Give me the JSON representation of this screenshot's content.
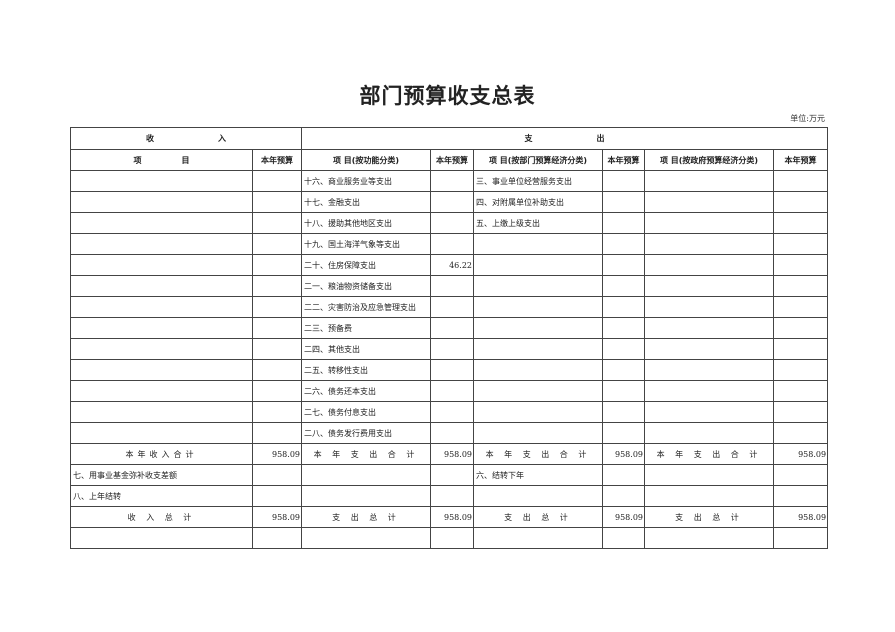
{
  "title": "部门预算收支总表",
  "unit": "单位:万元",
  "header": {
    "income": "收　　　　　　　　入",
    "expense": "支　　　　　　　　出",
    "cols": [
      "项　　　　　目",
      "本年预算",
      "项 目(按功能分类)",
      "本年预算",
      "项 目(按部门预算经济分类)",
      "本年预算",
      "项 目(按政府预算经济分类)",
      "本年预算"
    ]
  },
  "rows": [
    [
      "",
      "",
      "十六、商业服务业等支出",
      "",
      "三、事业单位经营服务支出",
      "",
      "",
      ""
    ],
    [
      "",
      "",
      "十七、金融支出",
      "",
      "四、对附属单位补助支出",
      "",
      "",
      ""
    ],
    [
      "",
      "",
      "十八、援助其他地区支出",
      "",
      "五、上缴上级支出",
      "",
      "",
      ""
    ],
    [
      "",
      "",
      "十九、国土海洋气象等支出",
      "",
      "",
      "",
      "",
      ""
    ],
    [
      "",
      "",
      "二十、住房保障支出",
      "46.22",
      "",
      "",
      "",
      ""
    ],
    [
      "",
      "",
      "二一、粮油物资储备支出",
      "",
      "",
      "",
      "",
      ""
    ],
    [
      "",
      "",
      "二二、灾害防治及应急管理支出",
      "",
      "",
      "",
      "",
      ""
    ],
    [
      "",
      "",
      "二三、预备费",
      "",
      "",
      "",
      "",
      ""
    ],
    [
      "",
      "",
      "二四、其他支出",
      "",
      "",
      "",
      "",
      ""
    ],
    [
      "",
      "",
      "二五、转移性支出",
      "",
      "",
      "",
      "",
      ""
    ],
    [
      "",
      "",
      "二六、债务还本支出",
      "",
      "",
      "",
      "",
      ""
    ],
    [
      "",
      "",
      "二七、债务付息支出",
      "",
      "",
      "",
      "",
      ""
    ],
    [
      "",
      "",
      "二八、债务发行费用支出",
      "",
      "",
      "",
      "",
      ""
    ],
    [
      "本年收入合计",
      "958.09",
      "本 年 支 出 合 计",
      "958.09",
      "本 年 支 出 合 计",
      "958.09",
      "本 年 支 出 合 计",
      "958.09"
    ],
    [
      "七、用事业基金弥补收支差额",
      "",
      "",
      "",
      "六、结转下年",
      "",
      "",
      ""
    ],
    [
      "八、上年结转",
      "",
      "",
      "",
      "",
      "",
      "",
      ""
    ],
    [
      "收 入 总 计",
      "958.09",
      "支 出 总 计",
      "958.09",
      "支 出 总 计",
      "958.09",
      "支 出 总 计",
      "958.09"
    ],
    [
      "",
      "",
      "",
      "",
      "",
      "",
      "",
      ""
    ]
  ]
}
